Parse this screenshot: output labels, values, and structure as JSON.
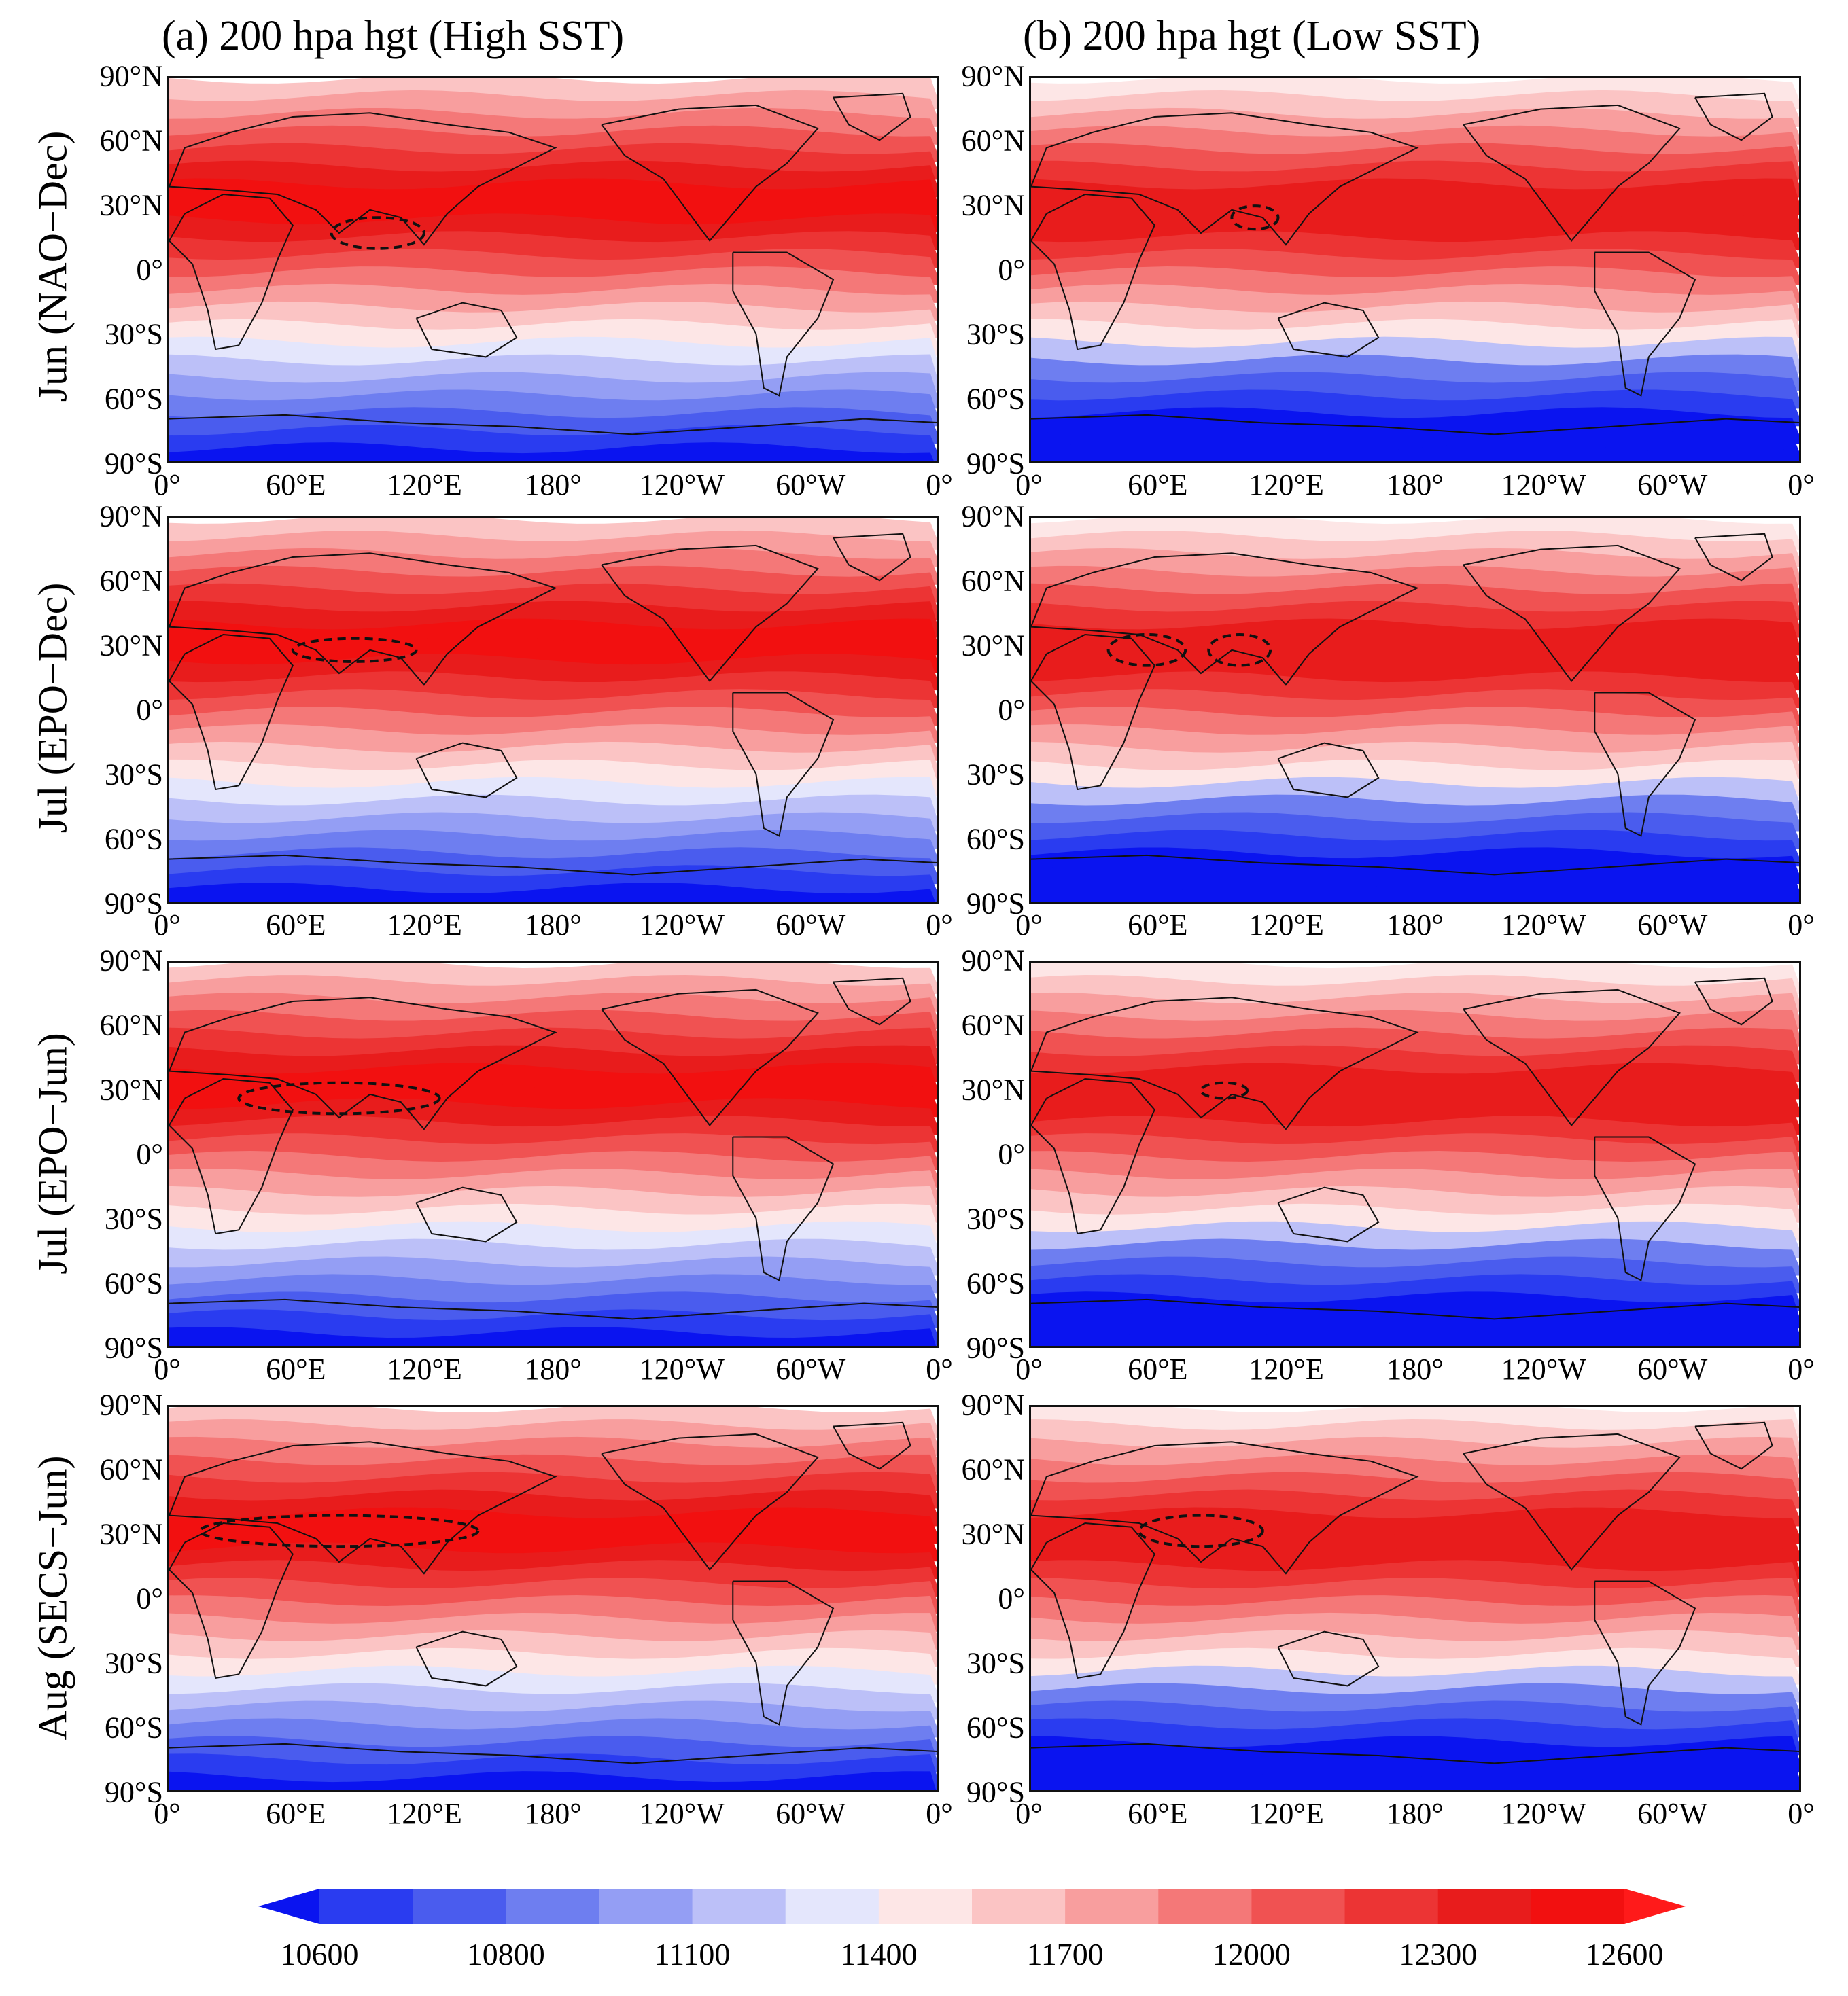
{
  "figure": {
    "columns": [
      {
        "title": "(a) 200 hpa hgt (High SST)"
      },
      {
        "title": "(b) 200 hpa hgt (Low SST)"
      }
    ],
    "rows": [
      {
        "label": "Jun (NAO−Dec)"
      },
      {
        "label": "Jul (EPO−Dec)"
      },
      {
        "label": "Jul (EPO−Jun)"
      },
      {
        "label": "Aug (SECS−Jun)"
      }
    ],
    "lat_ticks": [
      "90°N",
      "60°N",
      "30°N",
      "0°",
      "30°S",
      "60°S",
      "90°S"
    ],
    "lon_ticks": [
      "0°",
      "60°E",
      "120°E",
      "180°",
      "120°W",
      "60°W",
      "0°"
    ]
  },
  "colorbar": {
    "levels": [
      10600,
      10700,
      10800,
      10950,
      11100,
      11250,
      11400,
      11550,
      11700,
      11850,
      12000,
      12150,
      12300,
      12450,
      12600
    ],
    "labels": [
      "10600",
      "10800",
      "11100",
      "11400",
      "11700",
      "12000",
      "12300",
      "12600"
    ],
    "colors": [
      "#0a14f0",
      "#2a3cf0",
      "#4a5cee",
      "#6e7ef0",
      "#949ef4",
      "#bcc0f8",
      "#e4e6fc",
      "#fde6e6",
      "#fbc4c4",
      "#f89e9e",
      "#f47878",
      "#f05252",
      "#ec3434",
      "#e81c1c",
      "#f21010",
      "#ff1a1a"
    ],
    "extend": "both"
  },
  "panels_info": {
    "variable": "200 hPa geopotential height (gpm)",
    "contour": "dashed line marks 12600 gpm high centre"
  }
}
